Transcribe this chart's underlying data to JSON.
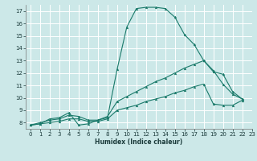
{
  "title": "",
  "xlabel": "Humidex (Indice chaleur)",
  "xlim": [
    -0.5,
    23
  ],
  "ylim": [
    7.5,
    17.5
  ],
  "xticks": [
    0,
    1,
    2,
    3,
    4,
    5,
    6,
    7,
    8,
    9,
    10,
    11,
    12,
    13,
    14,
    15,
    16,
    17,
    18,
    19,
    20,
    21,
    22,
    23
  ],
  "yticks": [
    8,
    9,
    10,
    11,
    12,
    13,
    14,
    15,
    16,
    17
  ],
  "background_color": "#cce8e8",
  "grid_color": "#ffffff",
  "line_color": "#1a7a6a",
  "lines": [
    {
      "x": [
        0,
        1,
        2,
        3,
        4,
        5,
        6,
        7,
        8,
        9,
        10,
        11,
        12,
        13,
        14,
        15,
        16,
        17,
        18,
        19,
        20,
        21,
        22
      ],
      "y": [
        7.8,
        7.9,
        8.3,
        8.4,
        8.8,
        7.8,
        7.9,
        8.2,
        8.4,
        12.3,
        15.7,
        17.2,
        17.3,
        17.3,
        17.2,
        16.5,
        15.1,
        14.3,
        13.0,
        12.2,
        11.1,
        10.3,
        9.9
      ]
    },
    {
      "x": [
        0,
        1,
        2,
        3,
        4,
        5,
        6,
        7,
        8,
        9,
        10,
        11,
        12,
        13,
        14,
        15,
        16,
        17,
        18,
        19,
        20,
        21,
        22
      ],
      "y": [
        7.8,
        8.0,
        8.2,
        8.3,
        8.6,
        8.5,
        8.2,
        8.2,
        8.5,
        9.7,
        10.1,
        10.5,
        10.9,
        11.3,
        11.6,
        12.0,
        12.4,
        12.7,
        13.0,
        12.1,
        11.9,
        10.5,
        9.9
      ]
    },
    {
      "x": [
        0,
        1,
        2,
        3,
        4,
        5,
        6,
        7,
        8,
        9,
        10,
        11,
        12,
        13,
        14,
        15,
        16,
        17,
        18,
        19,
        20,
        21,
        22
      ],
      "y": [
        7.8,
        7.9,
        8.0,
        8.1,
        8.3,
        8.3,
        8.1,
        8.1,
        8.3,
        9.0,
        9.2,
        9.4,
        9.7,
        9.9,
        10.1,
        10.4,
        10.6,
        10.9,
        11.1,
        9.5,
        9.4,
        9.4,
        9.8
      ]
    }
  ]
}
